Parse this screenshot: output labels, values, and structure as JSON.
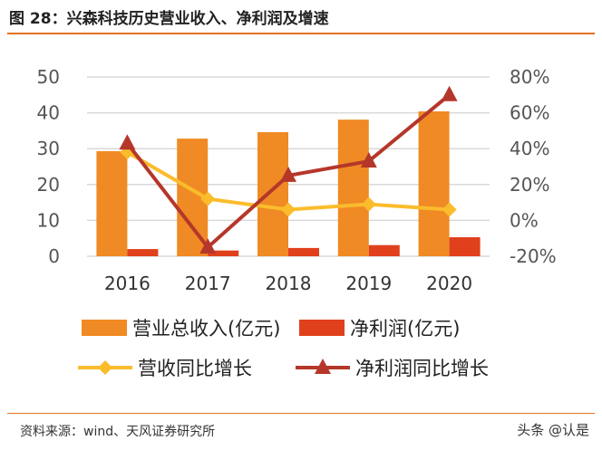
{
  "title": "图 28：兴森科技历史营业收入、净利润及增速",
  "source": "资料来源：wind、天风证券研究所",
  "watermark": "头条 @认是",
  "chart_data": {
    "type": "bar+line",
    "categories": [
      "2016",
      "2017",
      "2018",
      "2019",
      "2020"
    ],
    "left_axis": {
      "ylim": [
        0,
        50
      ],
      "ticks": [
        "0",
        "10",
        "20",
        "30",
        "40",
        "50"
      ]
    },
    "right_axis": {
      "ylim": [
        -20,
        80
      ],
      "ticks": [
        "-20%",
        "0%",
        "20%",
        "40%",
        "60%",
        "80%"
      ]
    },
    "grid": true,
    "legend_placement": "bottom",
    "series": [
      {
        "name": "营业总收入(亿元)",
        "type": "bar",
        "axis": "left",
        "color": "#f08a24",
        "values": [
          29.3,
          32.8,
          34.6,
          38.1,
          40.4
        ]
      },
      {
        "name": "净利润(亿元)",
        "type": "bar",
        "axis": "left",
        "color": "#e0401c",
        "values": [
          2.0,
          1.6,
          2.3,
          3.1,
          5.3
        ]
      },
      {
        "name": "营收同比增长",
        "type": "line",
        "axis": "right",
        "marker": "diamond",
        "color": "#fbbc2c",
        "values": [
          38,
          12,
          6,
          9,
          6
        ]
      },
      {
        "name": "净利润同比增长",
        "type": "line",
        "axis": "right",
        "marker": "triangle",
        "color": "#b5372a",
        "values": [
          43,
          -15,
          25,
          33,
          70
        ]
      }
    ]
  }
}
